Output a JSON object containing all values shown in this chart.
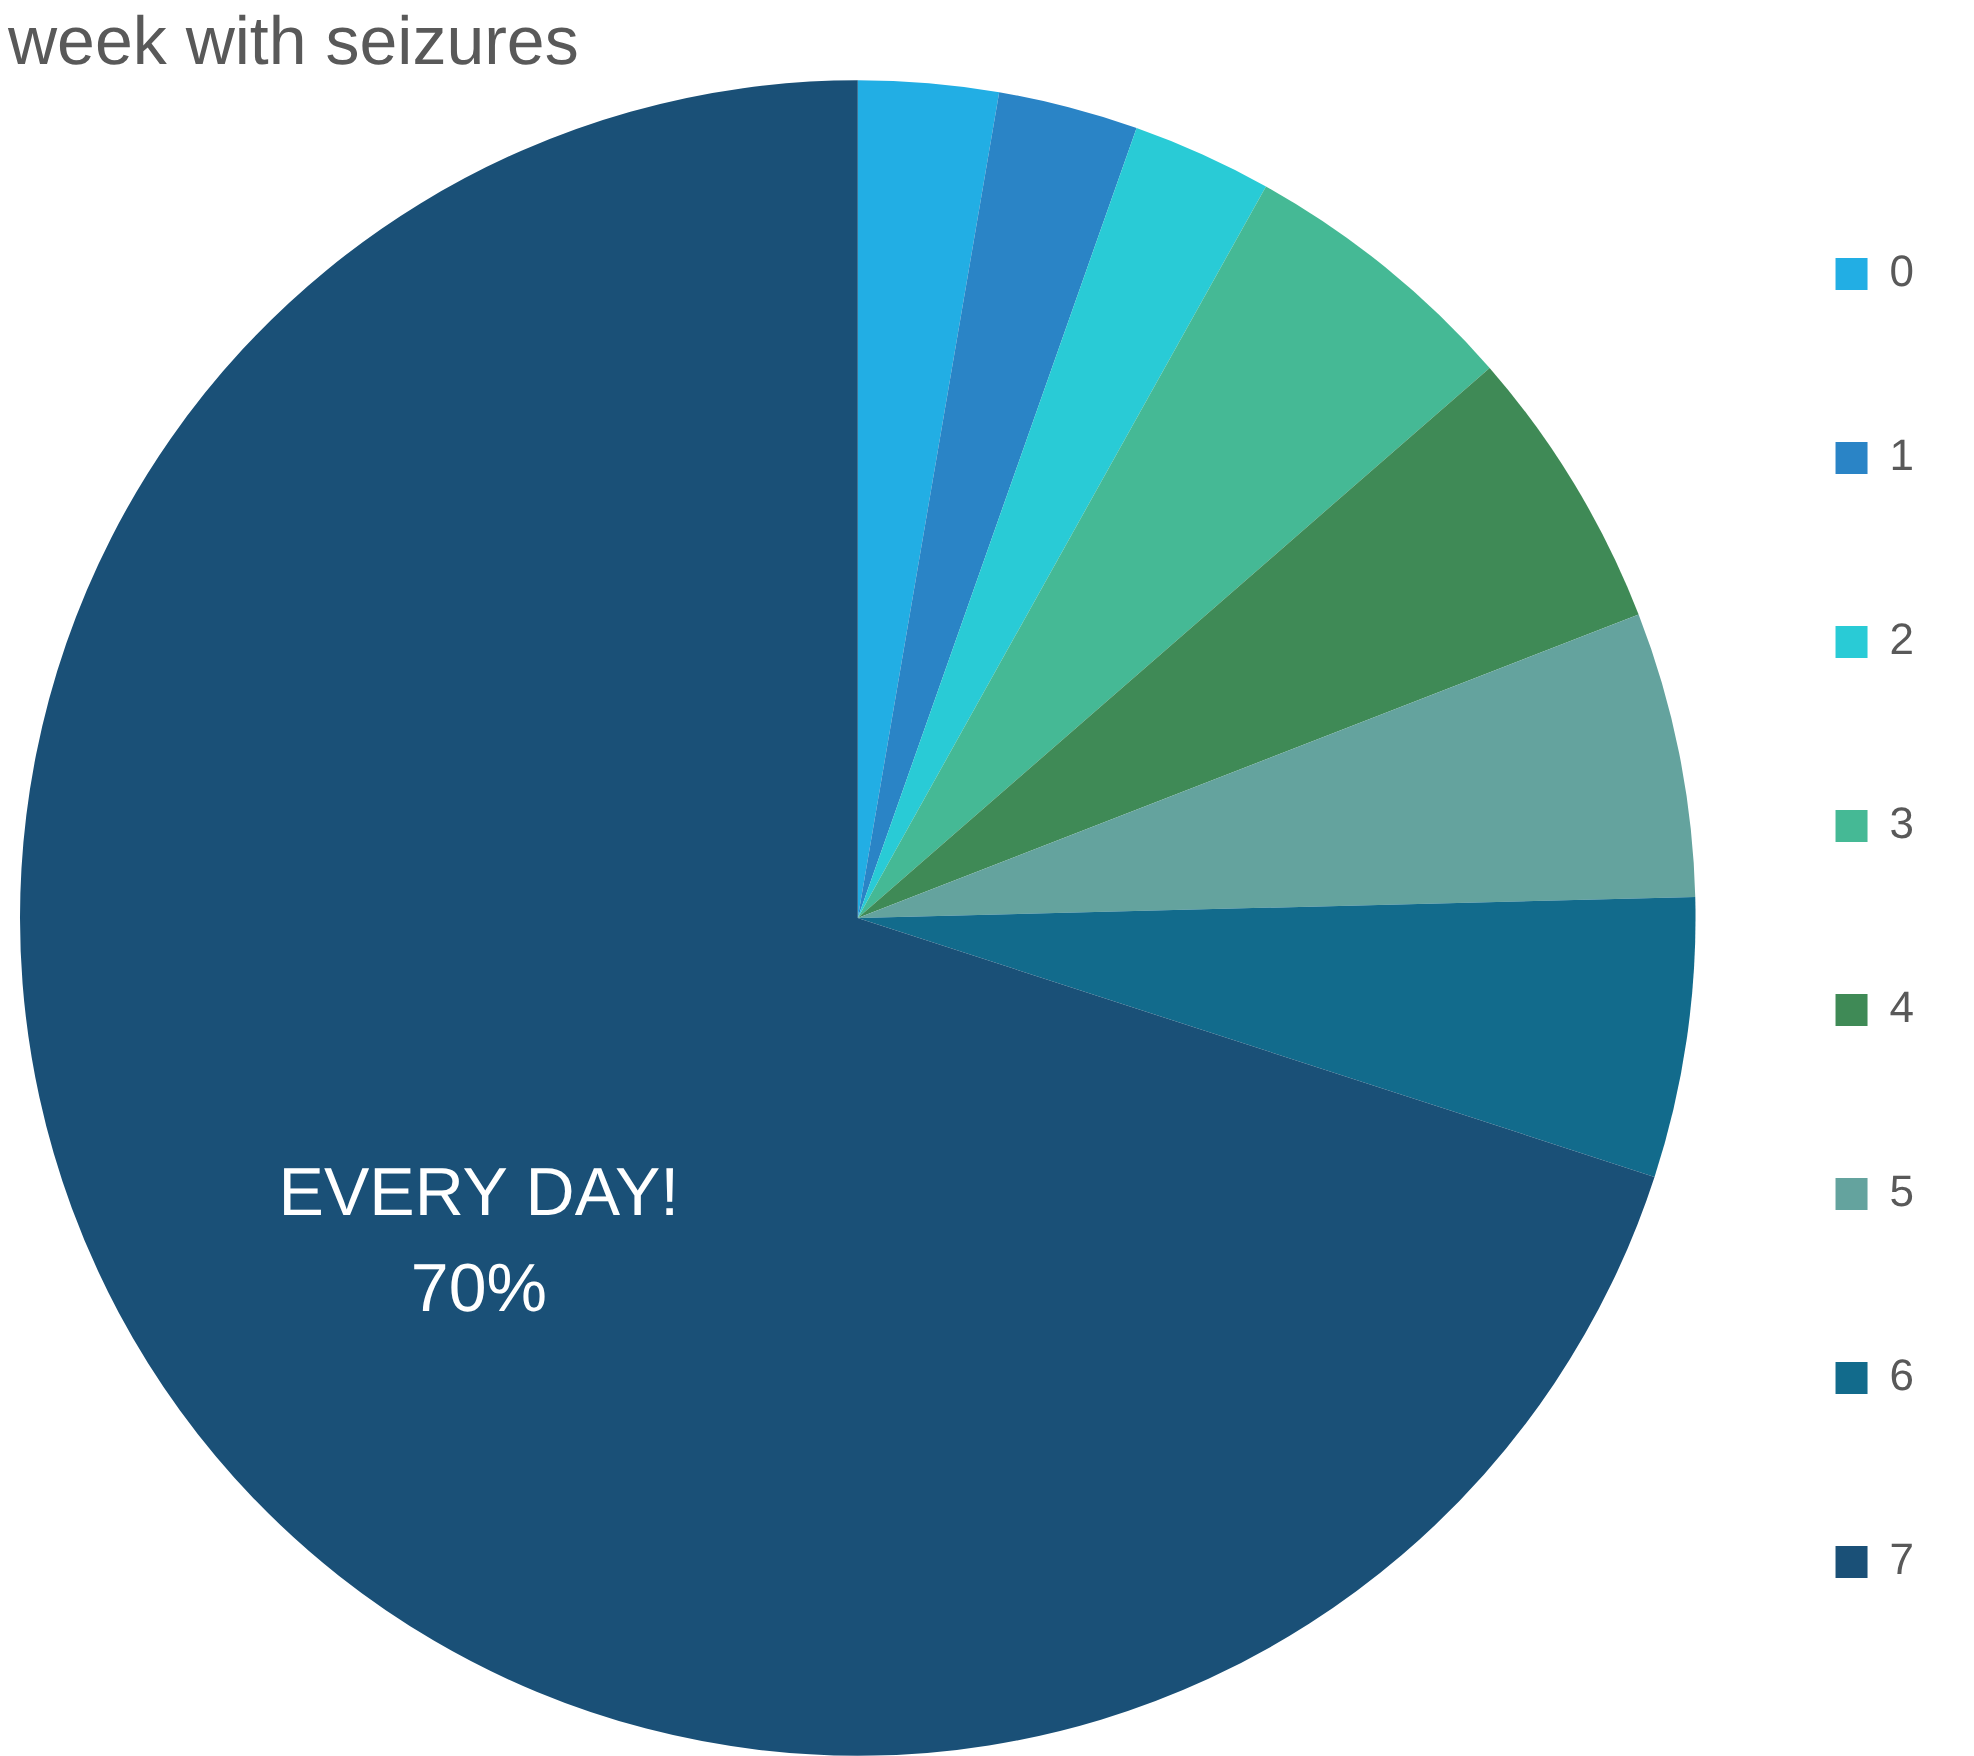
{
  "chart_data": {
    "type": "pie",
    "title": "week with seizures",
    "categories": [
      "0",
      "1",
      "2",
      "3",
      "4",
      "5",
      "6",
      "7"
    ],
    "values": [
      2.7,
      2.7,
      2.7,
      5.5,
      5.5,
      5.5,
      5.4,
      70
    ],
    "colors": [
      "#22aee4",
      "#2a84c6",
      "#29cbd6",
      "#45b995",
      "#3f8a56",
      "#64a39e",
      "#126b8c",
      "#1a5077"
    ],
    "value_labels": [
      null,
      null,
      null,
      null,
      null,
      null,
      null,
      "70%"
    ],
    "annotations": [
      {
        "text": "EVERY DAY!",
        "x": "7"
      }
    ],
    "legend": "right"
  }
}
